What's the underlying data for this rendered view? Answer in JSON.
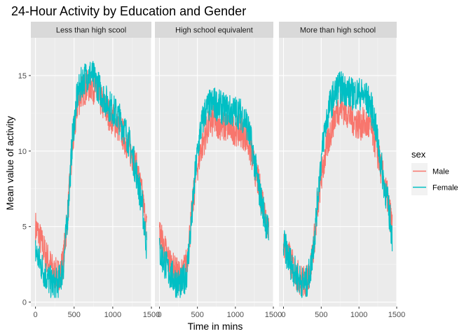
{
  "chart_data": {
    "type": "line",
    "title": "24-Hour Activity by Education and Gender",
    "xlabel": "Time in mins",
    "ylabel": "Mean value of activity",
    "xlim": [
      -60,
      1500
    ],
    "ylim": [
      -0.3,
      17.5
    ],
    "x_ticks": [
      0,
      500,
      1000,
      1500
    ],
    "x_tick_labels": [
      "0",
      "500",
      "1000",
      "1500"
    ],
    "y_ticks": [
      0,
      5,
      10,
      15
    ],
    "y_tick_labels": [
      "0",
      "5",
      "10",
      "15"
    ],
    "grid": true,
    "legend": {
      "title": "sex",
      "placement": "right",
      "entries": [
        {
          "label": "Male",
          "color": "#F8766D"
        },
        {
          "label": "Female",
          "color": "#00BFC4"
        }
      ]
    },
    "facets": [
      {
        "label": "Less than high scool",
        "series": [
          {
            "name": "Male",
            "color": "#F8766D",
            "x": [
              0,
              60,
              120,
              180,
              240,
              300,
              360,
              420,
              480,
              540,
              600,
              660,
              720,
              780,
              840,
              900,
              960,
              1020,
              1080,
              1140,
              1200,
              1260,
              1320,
              1380,
              1440
            ],
            "values": [
              5.0,
              4.2,
              3.3,
              2.6,
              1.9,
              1.8,
              2.7,
              6.0,
              10.3,
              13.0,
              14.0,
              14.2,
              14.4,
              14.0,
              13.4,
              12.8,
              12.4,
              12.0,
              11.6,
              11.0,
              10.3,
              9.6,
              8.6,
              7.0,
              4.8
            ]
          },
          {
            "name": "Female",
            "color": "#00BFC4",
            "x": [
              0,
              60,
              120,
              180,
              240,
              300,
              360,
              420,
              480,
              540,
              600,
              660,
              720,
              780,
              840,
              900,
              960,
              1020,
              1080,
              1140,
              1200,
              1260,
              1320,
              1380,
              1440
            ],
            "values": [
              3.4,
              2.6,
              1.9,
              1.4,
              1.1,
              1.3,
              2.3,
              6.0,
              11.0,
              13.6,
              14.6,
              15.0,
              15.1,
              14.6,
              14.0,
              13.4,
              13.0,
              12.6,
              12.2,
              11.6,
              10.8,
              9.6,
              8.2,
              6.4,
              3.6
            ]
          }
        ]
      },
      {
        "label": "High school equivalent",
        "series": [
          {
            "name": "Male",
            "color": "#F8766D",
            "x": [
              0,
              60,
              120,
              180,
              240,
              300,
              360,
              420,
              480,
              540,
              600,
              660,
              720,
              780,
              840,
              900,
              960,
              1020,
              1080,
              1140,
              1200,
              1260,
              1320,
              1380,
              1440
            ],
            "values": [
              4.6,
              3.6,
              2.8,
              2.2,
              1.8,
              1.8,
              2.6,
              5.5,
              8.5,
              10.0,
              11.0,
              11.8,
              12.0,
              11.9,
              11.6,
              11.6,
              11.5,
              11.4,
              11.3,
              11.0,
              10.0,
              8.8,
              7.5,
              6.2,
              4.9
            ]
          },
          {
            "name": "Female",
            "color": "#00BFC4",
            "x": [
              0,
              60,
              120,
              180,
              240,
              300,
              360,
              420,
              480,
              540,
              600,
              660,
              720,
              780,
              840,
              900,
              960,
              1020,
              1080,
              1140,
              1200,
              1260,
              1320,
              1380,
              1440
            ],
            "values": [
              3.3,
              2.7,
              2.0,
              1.6,
              1.2,
              1.2,
              2.0,
              5.2,
              9.0,
              11.4,
              12.6,
              13.0,
              13.2,
              13.0,
              12.8,
              12.7,
              12.6,
              12.6,
              12.4,
              12.0,
              10.8,
              9.0,
              7.2,
              5.8,
              4.4
            ]
          }
        ]
      },
      {
        "label": "More than high school",
        "series": [
          {
            "name": "Male",
            "color": "#F8766D",
            "x": [
              0,
              60,
              120,
              180,
              240,
              300,
              360,
              420,
              480,
              540,
              600,
              660,
              720,
              780,
              840,
              900,
              960,
              1020,
              1080,
              1140,
              1200,
              1260,
              1320,
              1380,
              1440
            ],
            "values": [
              4.0,
              3.1,
              2.4,
              1.8,
              1.4,
              1.3,
              2.3,
              4.6,
              7.5,
              9.4,
              10.8,
              12.0,
              12.8,
              12.9,
              12.6,
              12.2,
              11.9,
              11.8,
              11.8,
              11.6,
              10.9,
              9.6,
              8.2,
              6.8,
              5.0
            ]
          },
          {
            "name": "Female",
            "color": "#00BFC4",
            "x": [
              0,
              60,
              120,
              180,
              240,
              300,
              360,
              420,
              480,
              540,
              600,
              660,
              720,
              780,
              840,
              900,
              960,
              1020,
              1080,
              1140,
              1200,
              1260,
              1320,
              1380,
              1440
            ],
            "values": [
              3.9,
              3.0,
              2.3,
              1.7,
              1.3,
              1.2,
              2.2,
              4.8,
              8.5,
              11.2,
              12.8,
              13.6,
              14.2,
              14.2,
              14.0,
              13.8,
              13.8,
              13.8,
              13.6,
              13.2,
              12.2,
              10.2,
              8.2,
              6.6,
              4.4
            ]
          }
        ]
      }
    ]
  }
}
